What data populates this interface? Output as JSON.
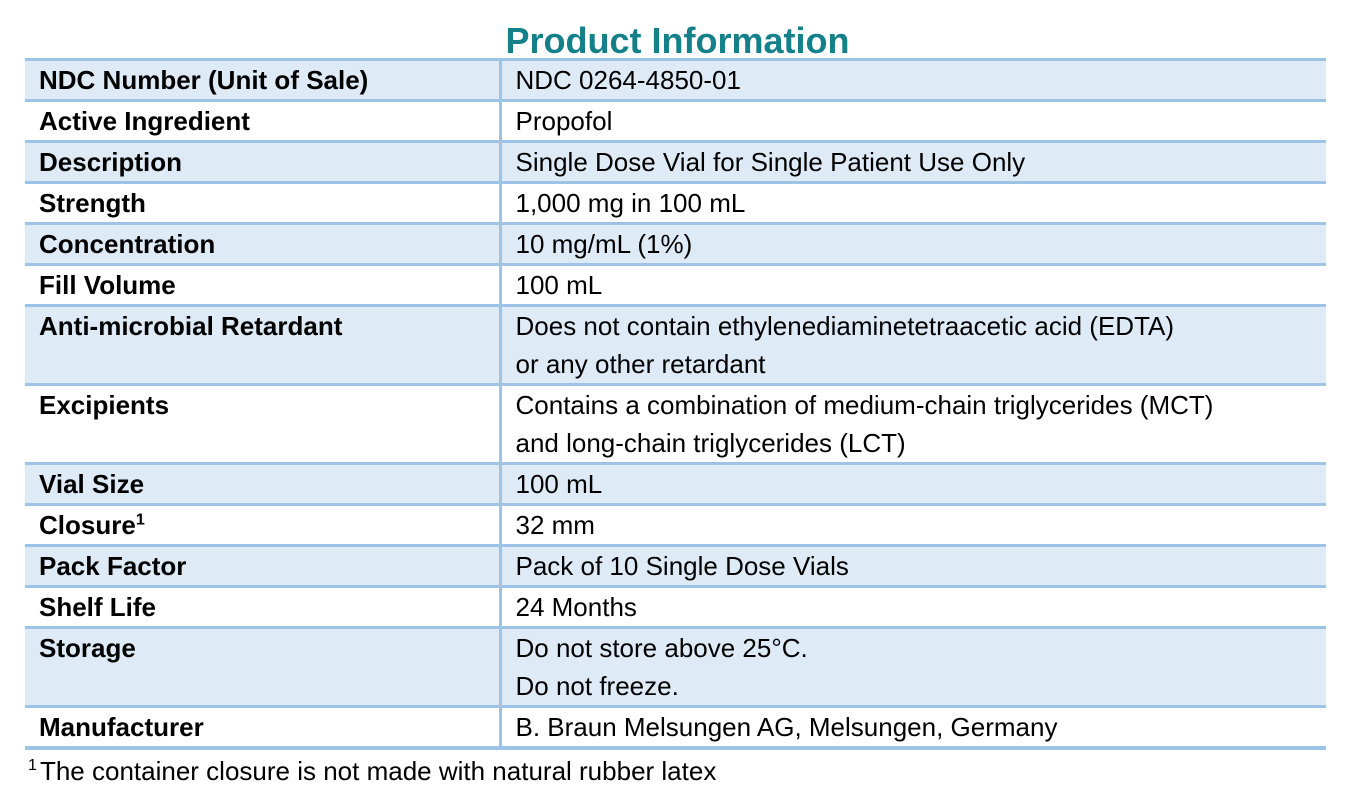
{
  "page": {
    "title": "Product Information"
  },
  "colors": {
    "accent_teal": "#13808A",
    "row_fill": "#DEEBF7",
    "table_border": "#9DC3E6",
    "text": "#000000"
  },
  "table": {
    "rows": [
      {
        "label": "NDC Number (Unit of Sale)",
        "value_lines": [
          "NDC 0264-4850-01"
        ]
      },
      {
        "label": "Active Ingredient",
        "value_lines": [
          "Propofol"
        ]
      },
      {
        "label": "Description",
        "value_lines": [
          "Single Dose Vial for Single Patient Use Only"
        ]
      },
      {
        "label": "Strength",
        "value_lines": [
          "1,000 mg in 100 mL"
        ]
      },
      {
        "label": "Concentration",
        "value_lines": [
          "10 mg/mL (1%)"
        ]
      },
      {
        "label": "Fill Volume",
        "value_lines": [
          "100 mL"
        ]
      },
      {
        "label": "Anti-microbial Retardant",
        "value_lines": [
          "Does not contain ethylenediaminetetraacetic acid (EDTA)",
          "or any other retardant"
        ]
      },
      {
        "label": "Excipients",
        "value_lines": [
          "Contains a combination of medium-chain triglycerides (MCT)",
          "and long-chain triglycerides (LCT)"
        ]
      },
      {
        "label": "Vial Size",
        "value_lines": [
          "100 mL"
        ]
      },
      {
        "label": "Closure",
        "label_sup": "1",
        "value_lines": [
          "32 mm"
        ]
      },
      {
        "label": "Pack Factor",
        "value_lines": [
          "Pack of 10 Single Dose Vials"
        ]
      },
      {
        "label": "Shelf Life",
        "value_lines": [
          "24 Months"
        ]
      },
      {
        "label": "Storage",
        "value_lines": [
          "Do not store above 25°C.",
          "Do not freeze."
        ]
      },
      {
        "label": "Manufacturer",
        "value_lines": [
          "B. Braun Melsungen AG, Melsungen, Germany"
        ]
      }
    ]
  },
  "footnote": {
    "sup": "1",
    "text": "The container closure is not made with natural rubber latex"
  }
}
